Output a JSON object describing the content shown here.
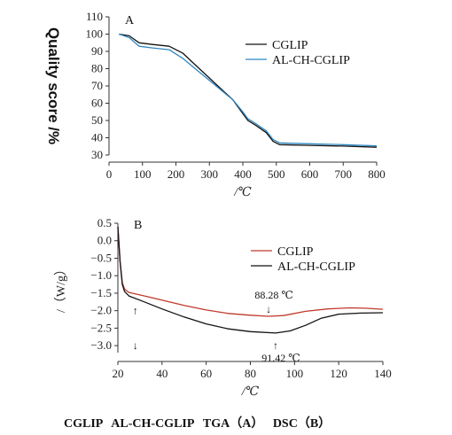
{
  "chart_data": [
    {
      "type": "line",
      "panel_label": "A",
      "ylabel": "Quality score /%",
      "xlabel": "/℃",
      "xlim": [
        0,
        800
      ],
      "ylim": [
        30,
        110
      ],
      "x_ticks": [
        0,
        100,
        200,
        300,
        400,
        500,
        600,
        700,
        800
      ],
      "y_ticks": [
        30,
        40,
        50,
        60,
        70,
        80,
        90,
        100,
        110
      ],
      "legend_position": "top-right",
      "series": [
        {
          "name": "CGLIP",
          "color": "#111111",
          "points": [
            [
              30,
              100
            ],
            [
              60,
              99
            ],
            [
              90,
              95
            ],
            [
              130,
              94
            ],
            [
              180,
              93
            ],
            [
              220,
              89
            ],
            [
              270,
              80
            ],
            [
              320,
              71
            ],
            [
              370,
              62
            ],
            [
              400,
              54
            ],
            [
              415,
              50
            ],
            [
              440,
              47
            ],
            [
              470,
              43
            ],
            [
              490,
              38
            ],
            [
              510,
              36
            ],
            [
              600,
              35.6
            ],
            [
              700,
              35.2
            ],
            [
              800,
              34.5
            ]
          ]
        },
        {
          "name": "AL-CH-CGLIP",
          "color": "#2e86c1",
          "points": [
            [
              30,
              100
            ],
            [
              60,
              98
            ],
            [
              90,
              93
            ],
            [
              130,
              92
            ],
            [
              180,
              91
            ],
            [
              220,
              86
            ],
            [
              270,
              78
            ],
            [
              320,
              70
            ],
            [
              370,
              62
            ],
            [
              400,
              55
            ],
            [
              415,
              51
            ],
            [
              440,
              48
            ],
            [
              470,
              44
            ],
            [
              490,
              39
            ],
            [
              510,
              37
            ],
            [
              600,
              36.5
            ],
            [
              700,
              36
            ],
            [
              800,
              35.3
            ]
          ]
        }
      ]
    },
    {
      "type": "line",
      "panel_label": "B",
      "ylabel": "/（W/g）",
      "xlabel": "/℃",
      "xlim": [
        20,
        140
      ],
      "ylim": [
        -3.2,
        0.5
      ],
      "x_ticks": [
        20,
        40,
        60,
        80,
        100,
        120,
        140
      ],
      "y_ticks": [
        0.5,
        0.0,
        -0.5,
        -1.0,
        -1.5,
        -2.0,
        -2.5,
        -3.0
      ],
      "y_tick_labels": [
        "0.5",
        "0.0",
        "−0.5",
        "−1.0",
        "−1.5",
        "−2.0",
        "−2.5",
        "−3.0"
      ],
      "legend_position": "top-right",
      "series": [
        {
          "name": "CGLIP",
          "color": "#c0392b",
          "points": [
            [
              20,
              0.4
            ],
            [
              21,
              -0.6
            ],
            [
              22,
              -1.2
            ],
            [
              23,
              -1.38
            ],
            [
              25,
              -1.48
            ],
            [
              30,
              -1.55
            ],
            [
              40,
              -1.7
            ],
            [
              50,
              -1.85
            ],
            [
              60,
              -1.98
            ],
            [
              70,
              -2.08
            ],
            [
              80,
              -2.13
            ],
            [
              88.28,
              -2.16
            ],
            [
              95,
              -2.14
            ],
            [
              105,
              -2.02
            ],
            [
              115,
              -1.95
            ],
            [
              125,
              -1.92
            ],
            [
              132,
              -1.93
            ],
            [
              140,
              -1.96
            ]
          ]
        },
        {
          "name": "AL-CH-CGLIP",
          "color": "#111111",
          "points": [
            [
              20,
              0.4
            ],
            [
              21,
              -0.6
            ],
            [
              22,
              -1.25
            ],
            [
              23,
              -1.45
            ],
            [
              25,
              -1.58
            ],
            [
              30,
              -1.7
            ],
            [
              40,
              -1.95
            ],
            [
              50,
              -2.18
            ],
            [
              60,
              -2.38
            ],
            [
              70,
              -2.52
            ],
            [
              80,
              -2.6
            ],
            [
              91.42,
              -2.64
            ],
            [
              98,
              -2.58
            ],
            [
              105,
              -2.42
            ],
            [
              112,
              -2.22
            ],
            [
              120,
              -2.1
            ],
            [
              130,
              -2.07
            ],
            [
              140,
              -2.06
            ]
          ]
        }
      ],
      "annotations": [
        {
          "text": "88.28 ℃",
          "x": 88.28,
          "y": -2.16
        },
        {
          "text": "91.42 ℃",
          "x": 91.42,
          "y": -2.64
        }
      ],
      "marker_arrows": [
        {
          "text": "↑",
          "x": 28,
          "y": -2.0
        },
        {
          "text": "↓",
          "x": 28,
          "y": -3.0
        }
      ]
    }
  ],
  "caption": "CGLIP   AL-CH-CGLIP   TGA（A）   DSC（B）"
}
